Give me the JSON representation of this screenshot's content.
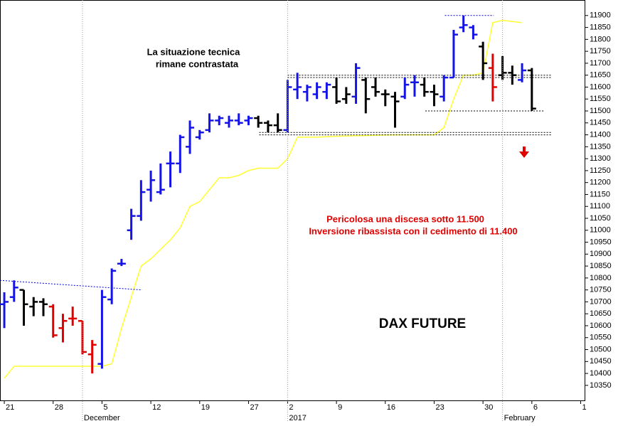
{
  "chart_data": {
    "type": "ohlc",
    "title": "DAX FUTURE",
    "annotations": [
      "La situazione tecnica",
      "rimane contrastata"
    ],
    "warnings": [
      "Pericolosa una discesa sotto 11.500",
      "Inversione ribassista con il cedimento di 11.400"
    ],
    "xlim": [
      -0.44,
      59.4
    ],
    "ylim": [
      10287,
      11965
    ],
    "xticks": [
      {
        "value": 0,
        "label": "21"
      },
      {
        "value": 5,
        "label": "28"
      },
      {
        "value": 10,
        "label": "5"
      },
      {
        "value": 15,
        "label": "12"
      },
      {
        "value": 20,
        "label": "19"
      },
      {
        "value": 25,
        "label": "27"
      },
      {
        "value": 29,
        "label": "2"
      },
      {
        "value": 34,
        "label": "9"
      },
      {
        "value": 39,
        "label": "16"
      },
      {
        "value": 44,
        "label": "23"
      },
      {
        "value": 49,
        "label": "30"
      },
      {
        "value": 54,
        "label": "6"
      },
      {
        "value": 59,
        "label": "1"
      }
    ],
    "periods": [
      {
        "value": 8,
        "label": "December"
      },
      {
        "value": 29,
        "label": "2017"
      },
      {
        "value": 51,
        "label": "February"
      }
    ],
    "yticks": [
      10350,
      10400,
      10450,
      10500,
      10550,
      10600,
      10650,
      10700,
      10750,
      10800,
      10850,
      10900,
      10950,
      11000,
      11050,
      11100,
      11150,
      11200,
      11250,
      11300,
      11350,
      11400,
      11450,
      11500,
      11550,
      11600,
      11650,
      11700,
      11750,
      11800,
      11850,
      11900
    ],
    "open": [
      10690,
      10720,
      10750,
      10680,
      10700,
      10680,
      10590,
      10630,
      10620,
      10480,
      10440,
      10710,
      10860,
      11000,
      11060,
      11170,
      11160,
      11280,
      11280,
      11350,
      11390,
      11420,
      11460,
      11450,
      11460,
      11460,
      11470,
      11450,
      11440,
      11420,
      11590,
      11580,
      11570,
      11580,
      11600,
      11550,
      11560,
      11630,
      11600,
      11570,
      11560,
      11560,
      11620,
      11610,
      11580,
      11560,
      11640,
      11850,
      11850,
      11770,
      11680,
      11650,
      11660,
      11630,
      11670
    ],
    "high": [
      10740,
      10790,
      10750,
      10720,
      10715,
      10690,
      10650,
      10680,
      10620,
      10540,
      10750,
      10840,
      10880,
      11090,
      11210,
      11250,
      11280,
      11330,
      11400,
      11460,
      11420,
      11490,
      11480,
      11480,
      11490,
      11480,
      11480,
      11460,
      11490,
      11630,
      11660,
      11610,
      11620,
      11620,
      11640,
      11600,
      11700,
      11640,
      11640,
      11590,
      11580,
      11640,
      11650,
      11640,
      11610,
      11650,
      11840,
      11900,
      11860,
      11790,
      11740,
      11730,
      11690,
      11700,
      11680
    ],
    "low": [
      10590,
      10700,
      10600,
      10640,
      10640,
      10550,
      10530,
      10600,
      10480,
      10400,
      10420,
      10690,
      10850,
      10960,
      11040,
      11120,
      11150,
      11180,
      11240,
      11320,
      11380,
      11410,
      11440,
      11430,
      11440,
      11440,
      11430,
      11410,
      11410,
      11410,
      11550,
      11540,
      11550,
      11550,
      11530,
      11530,
      11530,
      11490,
      11560,
      11520,
      11430,
      11550,
      11560,
      11560,
      11520,
      11540,
      11640,
      11830,
      11800,
      11630,
      11540,
      11630,
      11610,
      11620,
      11500
    ],
    "close": [
      10700,
      10760,
      10690,
      10700,
      10690,
      10560,
      10620,
      10630,
      10490,
      10520,
      10720,
      10830,
      10860,
      11060,
      11160,
      11210,
      11170,
      11280,
      11390,
      11430,
      11410,
      11460,
      11470,
      11460,
      11450,
      11470,
      11450,
      11440,
      11420,
      11600,
      11600,
      11600,
      11600,
      11610,
      11540,
      11570,
      11680,
      11550,
      11580,
      11570,
      11540,
      11610,
      11620,
      11580,
      11570,
      11640,
      11820,
      11860,
      11820,
      11700,
      11600,
      11660,
      11650,
      11670,
      11510
    ],
    "bar_colors": [
      "#1414e6",
      "#1414e6",
      "#000000",
      "#000000",
      "#000000",
      "#e00000",
      "#e00000",
      "#e00000",
      "#e00000",
      "#e00000",
      "#1414e6",
      "#1414e6",
      "#1414e6",
      "#1414e6",
      "#1414e6",
      "#1414e6",
      "#1414e6",
      "#1414e6",
      "#1414e6",
      "#1414e6",
      "#1414e6",
      "#1414e6",
      "#1414e6",
      "#1414e6",
      "#1414e6",
      "#1414e6",
      "#000000",
      "#000000",
      "#000000",
      "#1414e6",
      "#1414e6",
      "#1414e6",
      "#1414e6",
      "#1414e6",
      "#000000",
      "#000000",
      "#1414e6",
      "#000000",
      "#000000",
      "#000000",
      "#000000",
      "#1414e6",
      "#1414e6",
      "#000000",
      "#000000",
      "#1414e6",
      "#1414e6",
      "#1414e6",
      "#1414e6",
      "#000000",
      "#e00000",
      "#000000",
      "#000000",
      "#1414e6",
      "#000000"
    ],
    "series": [
      {
        "color": "#ffff33",
        "values": [
          10380,
          10430,
          10430,
          10430,
          10430,
          10430,
          10430,
          10430,
          10430,
          10430,
          10430,
          10440,
          10590,
          10720,
          10850,
          10880,
          10920,
          10960,
          11010,
          11100,
          11120,
          11170,
          11220,
          11220,
          11230,
          11250,
          11260,
          11260,
          11260,
          11300,
          11390,
          11390,
          11390,
          11392,
          11394,
          11395,
          11396,
          11397,
          11398,
          11399,
          11400,
          11400,
          11400,
          11400,
          11400,
          11430,
          11550,
          11650,
          11650,
          11660,
          11870,
          11880,
          11875,
          11870,
          null
        ]
      }
    ],
    "reference_lines": [
      {
        "start": [
          45.1,
          11900
        ],
        "end": [
          50.1,
          11900
        ],
        "color": "#0000cc"
      },
      {
        "start": [
          29,
          11650
        ],
        "end": [
          56,
          11650
        ],
        "color": "#000000"
      },
      {
        "start": [
          29,
          11640
        ],
        "end": [
          56,
          11640
        ],
        "color": "#000000"
      },
      {
        "start": [
          43.1,
          11500
        ],
        "end": [
          55.2,
          11500
        ],
        "color": "#000000"
      },
      {
        "start": [
          26.1,
          11410
        ],
        "end": [
          56,
          11410
        ],
        "color": "#000000"
      },
      {
        "start": [
          26.1,
          11400
        ],
        "end": [
          56,
          11400
        ],
        "color": "#000000"
      },
      {
        "start": [
          -0.44,
          10790
        ],
        "end": [
          14.1,
          10750
        ],
        "color": "#0000cc"
      }
    ]
  }
}
